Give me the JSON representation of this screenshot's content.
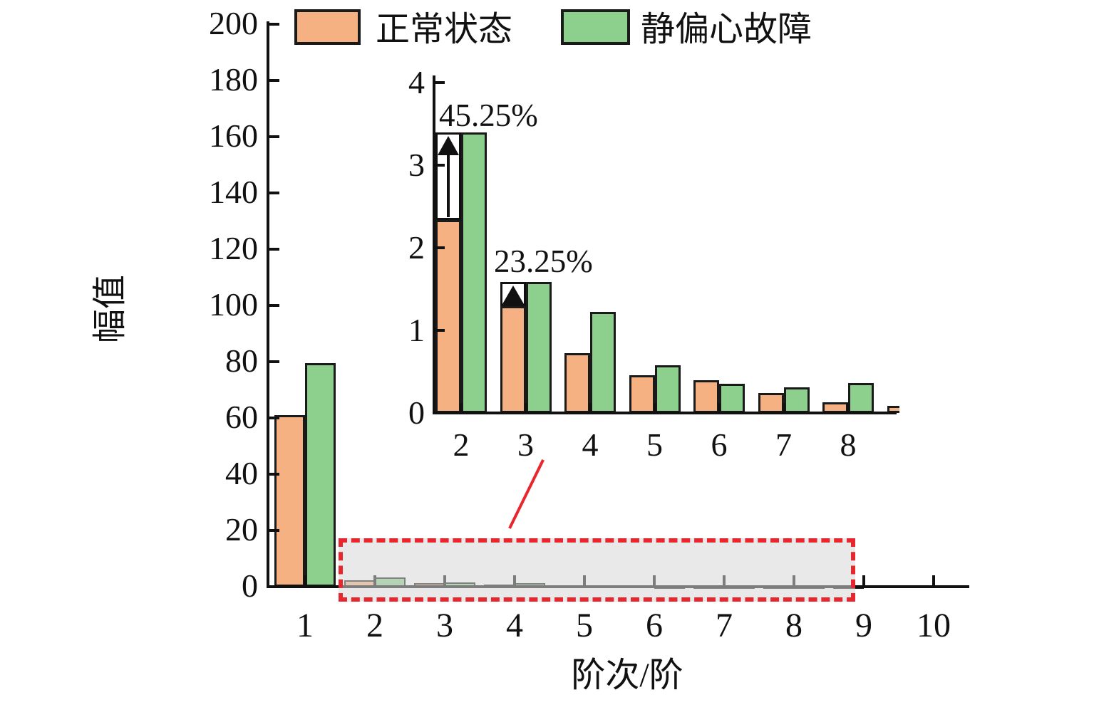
{
  "figure": {
    "legend": {
      "items": [
        {
          "label": "正常状态",
          "color": "#F6B183"
        },
        {
          "label": "静偏心故障",
          "color": "#8DCF8D"
        }
      ]
    }
  },
  "chart_data": {
    "type": "bar",
    "title": "",
    "xlabel": "阶次/阶",
    "ylabel": "幅值",
    "grid": false,
    "legend_position": "top",
    "categories": [
      "1",
      "2",
      "3",
      "4",
      "5",
      "6",
      "7",
      "8",
      "9",
      "10"
    ],
    "series": [
      {
        "name": "正常状态",
        "color": "#F6B183",
        "values": [
          61,
          2.34,
          1.29,
          0.72,
          0.46,
          0.4,
          0.24,
          0.13,
          0.09,
          0
        ]
      },
      {
        "name": "静偏心故障",
        "color": "#8DCF8D",
        "values": [
          79.5,
          3.4,
          1.59,
          1.22,
          0.58,
          0.35,
          0.31,
          0.36,
          0,
          0
        ]
      }
    ],
    "ylim": [
      0,
      200
    ],
    "yticks": [
      "0",
      "20",
      "40",
      "60",
      "80",
      "100",
      "120",
      "140",
      "160",
      "180",
      "200"
    ],
    "zoom_region": {
      "orders_covered": "2-8",
      "box_color": "#e8262d"
    },
    "inset": {
      "categories": [
        "2",
        "3",
        "4",
        "5",
        "6",
        "7",
        "8"
      ],
      "ylim": [
        0,
        4
      ],
      "yticks": [
        "0",
        "1",
        "2",
        "3",
        "4"
      ],
      "annotations": [
        {
          "category": "2",
          "label": "45.25%"
        },
        {
          "category": "3",
          "label": "23.25%"
        }
      ]
    }
  }
}
